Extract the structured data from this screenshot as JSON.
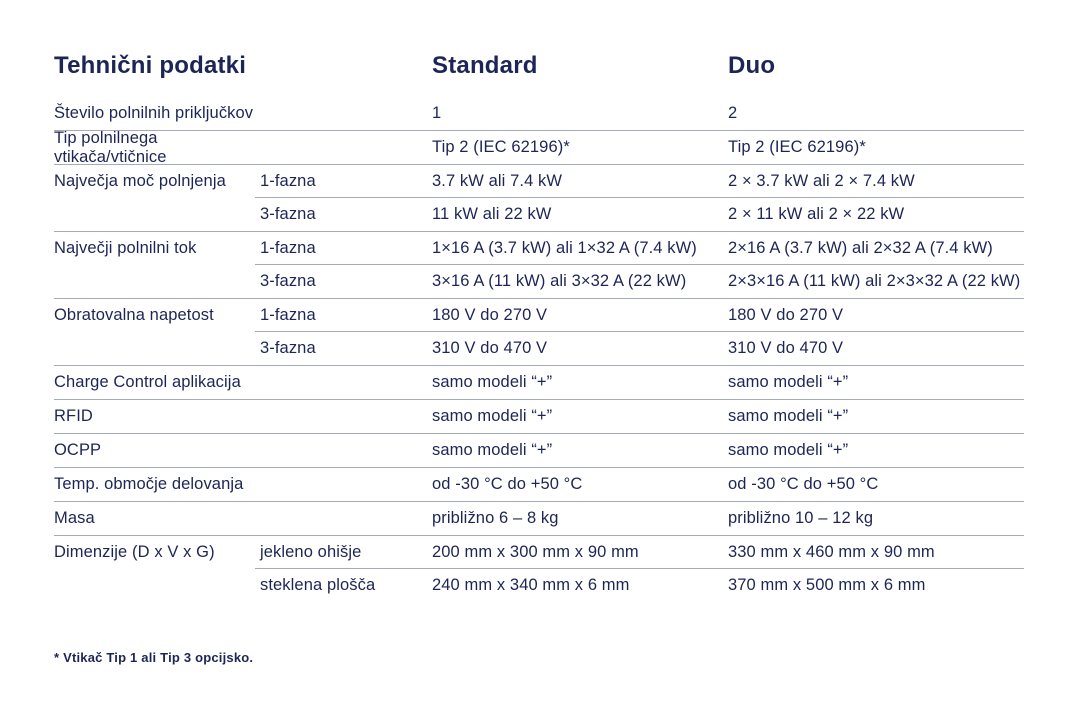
{
  "page": {
    "title": "Tehnični podatki",
    "columns": {
      "standard": "Standard",
      "duo": "Duo"
    },
    "footnote": "* Vtikač Tip 1 ali Tip 3 opcijsko.",
    "colors": {
      "text": "#1d2556",
      "divider": "#a6abb9",
      "background": "#ffffff"
    }
  },
  "table": {
    "rows": [
      {
        "label": "Število polnilnih priključkov",
        "sub": "",
        "standard": "1",
        "duo": "2"
      },
      {
        "label": "Tip polnilnega vtikača/vtičnice",
        "sub": "",
        "standard": "Tip 2 (IEC 62196)*",
        "duo": "Tip 2 (IEC 62196)*"
      },
      {
        "label": "Največja moč polnjenja",
        "sub": "1-fazna",
        "standard": "3.7 kW ali 7.4 kW",
        "duo": "2 × 3.7 kW ali 2 × 7.4 kW"
      },
      {
        "label": "",
        "sub": "3-fazna",
        "standard": "11 kW ali 22 kW",
        "duo": "2 × 11 kW ali 2 × 22 kW"
      },
      {
        "label": "Največji polnilni tok",
        "sub": "1-fazna",
        "standard": "1×16 A (3.7 kW) ali 1×32 A (7.4 kW)",
        "duo": "2×16 A (3.7 kW) ali 2×32 A (7.4 kW)"
      },
      {
        "label": "",
        "sub": "3-fazna",
        "standard": "3×16 A (11 kW) ali 3×32 A (22 kW)",
        "duo": "2×3×16 A (11 kW) ali 2×3×32 A (22 kW)"
      },
      {
        "label": "Obratovalna napetost",
        "sub": "1-fazna",
        "standard": "180 V do 270 V",
        "duo": "180 V do 270 V"
      },
      {
        "label": "",
        "sub": "3-fazna",
        "standard": "310 V do 470 V",
        "duo": "310 V do 470 V"
      },
      {
        "label": "Charge Control aplikacija",
        "sub": "",
        "standard": "samo modeli “+”",
        "duo": "samo modeli “+”"
      },
      {
        "label": "RFID",
        "sub": "",
        "standard": "samo modeli “+”",
        "duo": "samo modeli “+”"
      },
      {
        "label": "OCPP",
        "sub": "",
        "standard": "samo modeli “+”",
        "duo": "samo modeli “+”"
      },
      {
        "label": "Temp. območje delovanja",
        "sub": "",
        "standard": "od -30 °C do +50 °C",
        "duo": "od -30 °C do +50 °C"
      },
      {
        "label": "Masa",
        "sub": "",
        "standard": "približno 6 – 8 kg",
        "duo": "približno 10 – 12 kg"
      },
      {
        "label": "Dimenzije  (D x V x G)",
        "sub": "jekleno ohišje",
        "standard": "200 mm x 300 mm x 90 mm",
        "duo": "330 mm x 460 mm x 90 mm"
      },
      {
        "label": "",
        "sub": "steklena plošča",
        "standard": "240 mm x 340 mm x 6 mm",
        "duo": "370 mm x 500 mm x 6 mm"
      }
    ]
  }
}
